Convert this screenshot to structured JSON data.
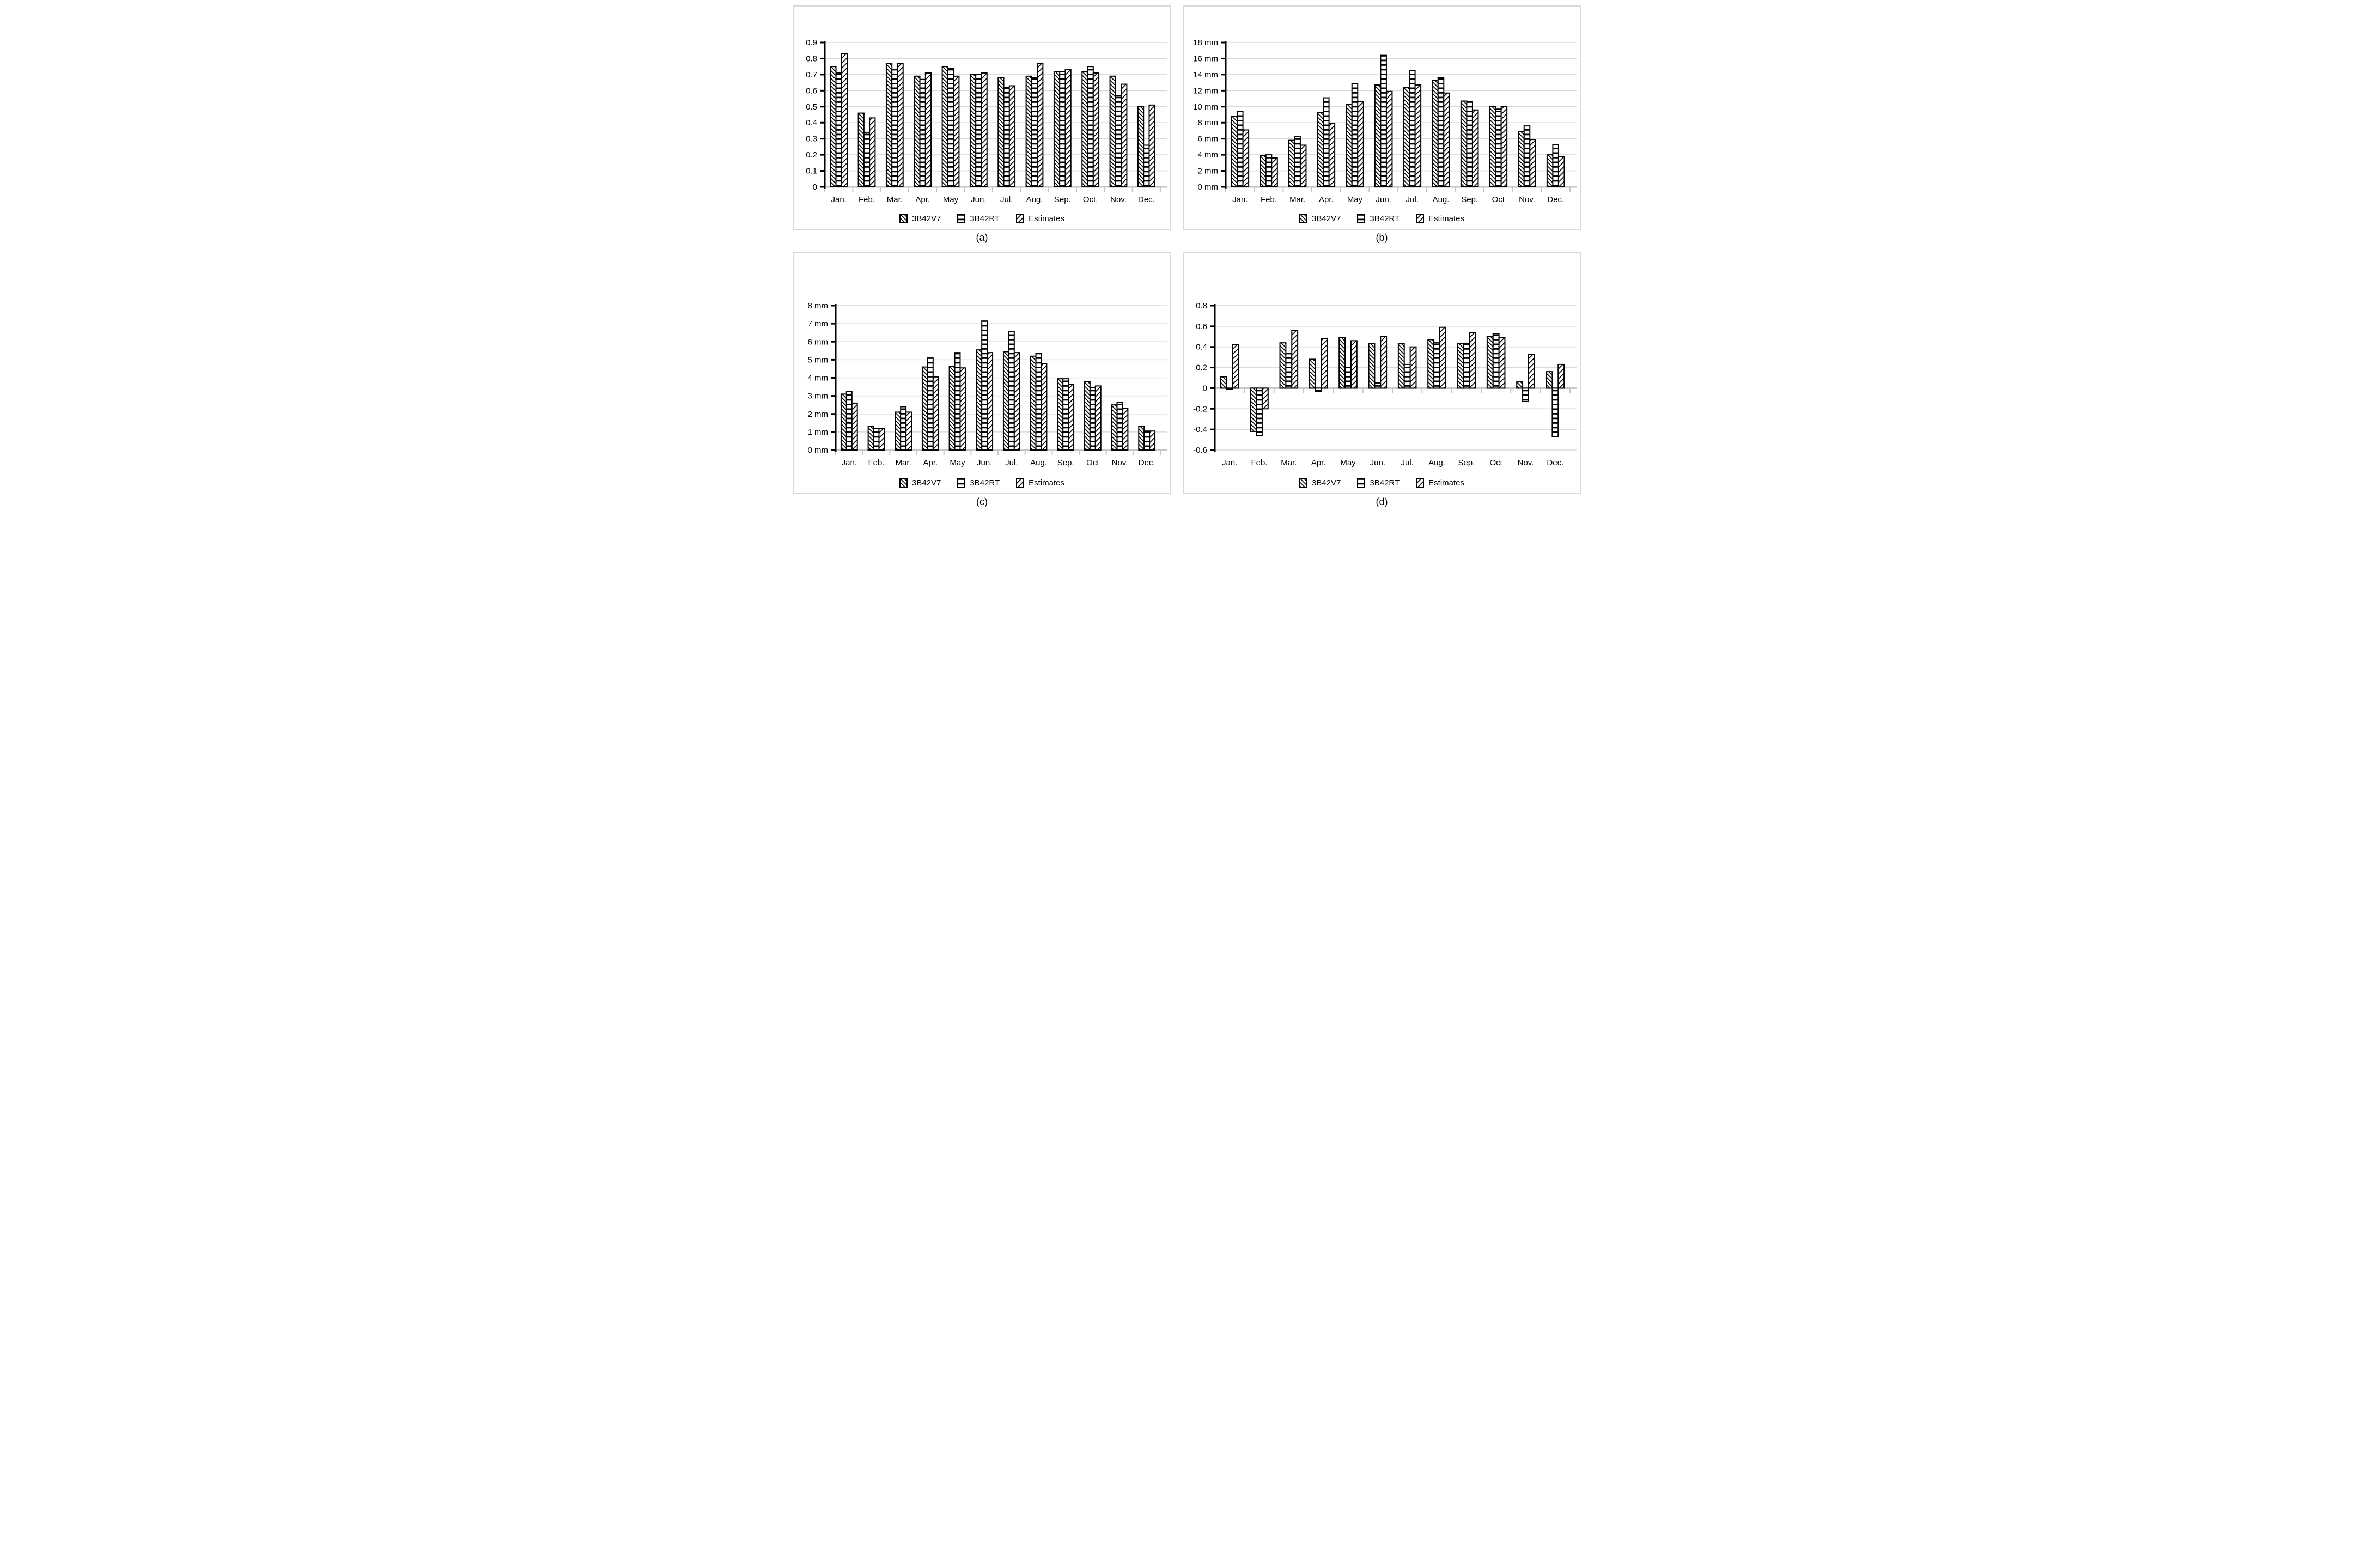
{
  "figure": {
    "background": "#ffffff"
  },
  "series_labels": [
    "3B42V7",
    "3B42RT",
    "Estimates"
  ],
  "colors": {
    "grid": "#d9d9d9",
    "baseline": "#c6c6c6",
    "axis": "#000000",
    "bar_stroke": "#000000",
    "bar_fill": "#ffffff",
    "panel_border": "#d9d9d9",
    "text": "#000000"
  },
  "chart_data": [
    {
      "type": "bar",
      "caption": "(a)",
      "unit": "",
      "ylim": [
        0,
        0.9
      ],
      "ystep": 0.1,
      "ydecimals": 1,
      "grid": true,
      "legend_position": "bottom",
      "categories": [
        "Jan.",
        "Feb.",
        "Mar.",
        "Apr.",
        "May",
        "Jun.",
        "Jul.",
        "Aug.",
        "Sep.",
        "Oct.",
        "Nov.",
        "Dec."
      ],
      "series": [
        {
          "name": "3B42V7",
          "pattern": "diagonal-down",
          "values": [
            0.75,
            0.46,
            0.77,
            0.69,
            0.75,
            0.7,
            0.68,
            0.69,
            0.72,
            0.72,
            0.69,
            0.5
          ]
        },
        {
          "name": "3B42RT",
          "pattern": "horizontal",
          "values": [
            0.71,
            0.34,
            0.73,
            0.67,
            0.74,
            0.7,
            0.62,
            0.68,
            0.72,
            0.75,
            0.57,
            0.26
          ]
        },
        {
          "name": "Estimates",
          "pattern": "diagonal-up",
          "values": [
            0.83,
            0.43,
            0.77,
            0.71,
            0.69,
            0.71,
            0.63,
            0.77,
            0.73,
            0.71,
            0.64,
            0.51
          ]
        }
      ]
    },
    {
      "type": "bar",
      "caption": "(b)",
      "unit": " mm",
      "ylim": [
        0,
        18
      ],
      "ystep": 2,
      "ydecimals": 0,
      "grid": true,
      "legend_position": "bottom",
      "categories": [
        "Jan.",
        "Feb.",
        "Mar.",
        "Apr.",
        "May",
        "Jun.",
        "Jul.",
        "Aug.",
        "Sep.",
        "Oct",
        "Nov.",
        "Dec."
      ],
      "series": [
        {
          "name": "3B42V7",
          "pattern": "diagonal-down",
          "values": [
            8.8,
            3.9,
            5.8,
            9.3,
            10.3,
            12.7,
            12.4,
            13.3,
            10.7,
            10.0,
            6.9,
            4.0
          ]
        },
        {
          "name": "3B42RT",
          "pattern": "horizontal",
          "values": [
            9.4,
            4.0,
            6.3,
            11.1,
            12.9,
            16.4,
            14.5,
            13.6,
            10.6,
            9.7,
            7.6,
            5.3
          ]
        },
        {
          "name": "Estimates",
          "pattern": "diagonal-up",
          "values": [
            7.1,
            3.6,
            5.2,
            7.9,
            10.6,
            11.9,
            12.7,
            11.7,
            9.6,
            10.0,
            5.9,
            3.8
          ]
        }
      ]
    },
    {
      "type": "bar",
      "caption": "(c)",
      "unit": " mm",
      "ylim": [
        0,
        8
      ],
      "ystep": 1,
      "ydecimals": 0,
      "grid": true,
      "legend_position": "bottom",
      "categories": [
        "Jan.",
        "Feb.",
        "Mar.",
        "Apr.",
        "May",
        "Jun.",
        "Jul.",
        "Aug.",
        "Sep.",
        "Oct",
        "Nov.",
        "Dec."
      ],
      "series": [
        {
          "name": "3B42V7",
          "pattern": "diagonal-down",
          "values": [
            3.1,
            1.3,
            2.1,
            4.6,
            4.65,
            5.55,
            5.45,
            5.2,
            3.95,
            3.8,
            2.5,
            1.3
          ]
        },
        {
          "name": "3B42RT",
          "pattern": "horizontal",
          "values": [
            3.25,
            1.2,
            2.4,
            5.1,
            5.4,
            7.15,
            6.55,
            5.35,
            3.95,
            3.45,
            2.65,
            1.05
          ]
        },
        {
          "name": "Estimates",
          "pattern": "diagonal-up",
          "values": [
            2.6,
            1.2,
            2.1,
            4.05,
            4.55,
            5.4,
            5.4,
            4.8,
            3.65,
            3.55,
            2.3,
            1.05
          ]
        }
      ]
    },
    {
      "type": "bar",
      "caption": "(d)",
      "unit": "",
      "ylim": [
        -0.6,
        0.8
      ],
      "ystep": 0.2,
      "ydecimals": 1,
      "grid": true,
      "legend_position": "bottom",
      "categories": [
        "Jan.",
        "Feb.",
        "Mar.",
        "Apr.",
        "May",
        "Jun.",
        "Jul.",
        "Aug.",
        "Sep.",
        "Oct",
        "Nov.",
        "Dec."
      ],
      "series": [
        {
          "name": "3B42V7",
          "pattern": "diagonal-down",
          "values": [
            0.11,
            -0.42,
            0.44,
            0.28,
            0.49,
            0.43,
            0.43,
            0.47,
            0.43,
            0.5,
            0.06,
            0.16
          ]
        },
        {
          "name": "3B42RT",
          "pattern": "horizontal",
          "values": [
            -0.01,
            -0.46,
            0.34,
            -0.03,
            0.2,
            0.05,
            0.23,
            0.44,
            0.43,
            0.53,
            -0.13,
            -0.47
          ]
        },
        {
          "name": "Estimates",
          "pattern": "diagonal-up",
          "values": [
            0.42,
            -0.2,
            0.56,
            0.48,
            0.46,
            0.5,
            0.4,
            0.59,
            0.54,
            0.49,
            0.33,
            0.23
          ]
        }
      ]
    }
  ]
}
